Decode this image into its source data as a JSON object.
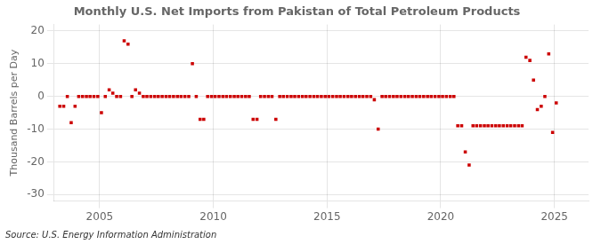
{
  "chart_data": {
    "type": "scatter",
    "title": "Monthly U.S. Net Imports from Pakistan of Total Petroleum Products",
    "ylabel": "Thousand Barrels per Day",
    "source": "Source: U.S. Energy Information Administration",
    "color": "#cc0000",
    "marker": "square",
    "grid": true,
    "xlim": [
      2003.0,
      2026.5
    ],
    "xticks": [
      2005,
      2010,
      2015,
      2020,
      2025
    ],
    "ylim": [
      -32,
      22
    ],
    "yticks": [
      -30,
      -20,
      -10,
      0,
      10,
      20
    ],
    "x": [
      2003.25,
      2003.42,
      2003.58,
      2003.75,
      2003.92,
      2004.08,
      2004.25,
      2004.42,
      2004.58,
      2004.75,
      2004.92,
      2005.08,
      2005.25,
      2005.42,
      2005.58,
      2005.75,
      2005.92,
      2006.08,
      2006.25,
      2006.42,
      2006.58,
      2006.75,
      2006.92,
      2007.08,
      2007.25,
      2007.42,
      2007.58,
      2007.75,
      2007.92,
      2008.08,
      2008.25,
      2008.42,
      2008.58,
      2008.75,
      2008.92,
      2009.08,
      2009.25,
      2009.42,
      2009.58,
      2009.75,
      2009.92,
      2010.08,
      2010.25,
      2010.42,
      2010.58,
      2010.75,
      2010.92,
      2011.08,
      2011.25,
      2011.42,
      2011.58,
      2011.75,
      2011.92,
      2012.08,
      2012.25,
      2012.42,
      2012.58,
      2012.75,
      2012.92,
      2013.08,
      2013.25,
      2013.42,
      2013.58,
      2013.75,
      2013.92,
      2014.08,
      2014.25,
      2014.42,
      2014.58,
      2014.75,
      2014.92,
      2015.08,
      2015.25,
      2015.42,
      2015.58,
      2015.75,
      2015.92,
      2016.08,
      2016.25,
      2016.42,
      2016.58,
      2016.75,
      2016.92,
      2017.08,
      2017.25,
      2017.42,
      2017.58,
      2017.75,
      2017.92,
      2018.08,
      2018.25,
      2018.42,
      2018.58,
      2018.75,
      2018.92,
      2019.08,
      2019.25,
      2019.42,
      2019.58,
      2019.75,
      2019.92,
      2020.08,
      2020.25,
      2020.42,
      2020.58,
      2020.75,
      2020.92,
      2021.08,
      2021.25,
      2021.42,
      2021.58,
      2021.75,
      2021.92,
      2022.08,
      2022.25,
      2022.42,
      2022.58,
      2022.75,
      2022.92,
      2023.08,
      2023.25,
      2023.42,
      2023.58,
      2023.75,
      2023.92,
      2024.08,
      2024.25,
      2024.42,
      2024.58,
      2024.75,
      2024.92,
      2025.08
    ],
    "values": [
      -3,
      -3,
      0,
      -8,
      -3,
      0,
      0,
      0,
      0,
      0,
      0,
      -5,
      0,
      2,
      1,
      0,
      0,
      17,
      16,
      0,
      2,
      1,
      0,
      0,
      0,
      0,
      0,
      0,
      0,
      0,
      0,
      0,
      0,
      0,
      0,
      10,
      0,
      -7,
      -7,
      0,
      0,
      0,
      0,
      0,
      0,
      0,
      0,
      0,
      0,
      0,
      0,
      -7,
      -7,
      0,
      0,
      0,
      0,
      -7,
      0,
      0,
      0,
      0,
      0,
      0,
      0,
      0,
      0,
      0,
      0,
      0,
      0,
      0,
      0,
      0,
      0,
      0,
      0,
      0,
      0,
      0,
      0,
      0,
      0,
      -1,
      -10,
      0,
      0,
      0,
      0,
      0,
      0,
      0,
      0,
      0,
      0,
      0,
      0,
      0,
      0,
      0,
      0,
      0,
      0,
      0,
      0,
      -9,
      -9,
      -17,
      -21,
      -9,
      -9,
      -9,
      -9,
      -9,
      -9,
      -9,
      -9,
      -9,
      -9,
      -9,
      -9,
      -9,
      -9,
      12,
      11,
      5,
      -4,
      -3,
      0,
      13,
      -11,
      -2
    ]
  }
}
